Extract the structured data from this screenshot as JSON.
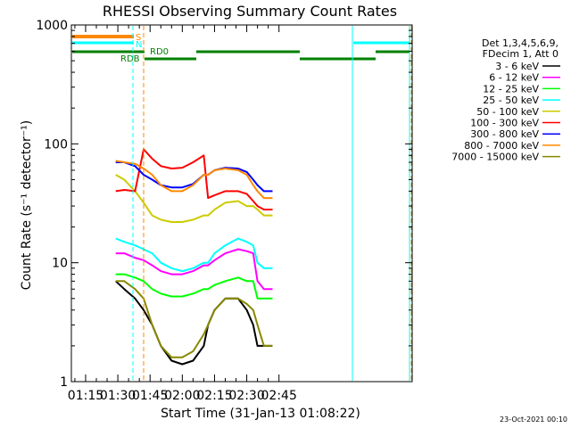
{
  "title": "RHESSI Observing Summary Count Rates",
  "footer_date": "23-Oct-2021 00:10",
  "legend": {
    "header_lines": [
      "Det 1,3,4,5,6,9,",
      "FDecim 1, Att 0"
    ],
    "entries": [
      {
        "label": "3 - 6 keV",
        "color": "#000000"
      },
      {
        "label": "6 - 12 keV",
        "color": "#ff00ff"
      },
      {
        "label": "12 - 25 keV",
        "color": "#00ff00"
      },
      {
        "label": "25 - 50 keV",
        "color": "#00ffff"
      },
      {
        "label": "50 - 100 keV",
        "color": "#cccc00"
      },
      {
        "label": "100 - 300 keV",
        "color": "#ff0000"
      },
      {
        "label": "300 - 800 keV",
        "color": "#0000ff"
      },
      {
        "label": "800 - 7000 keV",
        "color": "#ff8800"
      },
      {
        "label": "7000 - 15000 keV",
        "color": "#888800"
      }
    ]
  },
  "status_labels": {
    "s": "S",
    "n": "N",
    "rdb": "RDB",
    "rd0": "RD0"
  },
  "status_colors": {
    "saa": "#ff8800",
    "night": "#00ffff",
    "decim": "#008000"
  },
  "chart_data": {
    "type": "line",
    "title": "RHESSI Observing Summary Count Rates",
    "xlabel": "Start Time (31-Jan-13 01:08:22)",
    "ylabel": "Count Rate (s⁻¹ detector⁻¹)",
    "yscale": "log",
    "ylim": [
      1,
      1000
    ],
    "xlim_minutes_after_0100": [
      8.37,
      167
    ],
    "x_ticks": [
      {
        "label": "01:15",
        "minute": 15
      },
      {
        "label": "01:30",
        "minute": 30
      },
      {
        "label": "01:45",
        "minute": 45
      },
      {
        "label": "02:00",
        "minute": 60
      },
      {
        "label": "02:15",
        "minute": 75
      },
      {
        "label": "02:30",
        "minute": 90
      },
      {
        "label": "02:45",
        "minute": 105
      }
    ],
    "y_ticks": [
      {
        "label": "1",
        "value": 1
      },
      {
        "label": "10",
        "value": 10
      },
      {
        "label": "100",
        "value": 100
      },
      {
        "label": "1000",
        "value": 1000
      }
    ],
    "series": [
      {
        "name": "3 - 6 keV",
        "color": "#000000",
        "x": [
          29,
          33,
          38,
          42,
          46,
          50,
          55,
          60,
          65,
          70,
          72,
          75,
          80,
          86,
          90,
          93,
          95,
          98,
          102
        ],
        "y": [
          7,
          6,
          5,
          4,
          3,
          2,
          1.5,
          1.4,
          1.5,
          2,
          3,
          4,
          5,
          5,
          4,
          3,
          2,
          2,
          2
        ]
      },
      {
        "name": "6 - 12 keV",
        "color": "#ff00ff",
        "x": [
          29,
          33,
          38,
          42,
          46,
          50,
          55,
          60,
          65,
          70,
          72,
          75,
          80,
          86,
          90,
          93,
          95,
          98,
          102
        ],
        "y": [
          12,
          12,
          11,
          10.5,
          9.5,
          8.5,
          8,
          8,
          8.5,
          9.5,
          9.5,
          10.5,
          12,
          13,
          12.5,
          12,
          7,
          6,
          6
        ]
      },
      {
        "name": "12 - 25 keV",
        "color": "#00ff00",
        "x": [
          29,
          33,
          38,
          42,
          46,
          50,
          55,
          60,
          65,
          70,
          72,
          75,
          80,
          86,
          90,
          93,
          95,
          98,
          102
        ],
        "y": [
          8,
          8,
          7.5,
          7,
          6,
          5.5,
          5.2,
          5.2,
          5.5,
          6,
          6,
          6.5,
          7,
          7.5,
          7,
          7,
          5,
          5,
          5
        ]
      },
      {
        "name": "25 - 50 keV",
        "color": "#00ffff",
        "x": [
          29,
          33,
          38,
          42,
          46,
          50,
          55,
          60,
          65,
          70,
          72,
          75,
          80,
          86,
          90,
          93,
          95,
          98,
          102
        ],
        "y": [
          16,
          15,
          14,
          13,
          12,
          10,
          9,
          8.5,
          9,
          10,
          10,
          12,
          14,
          16,
          15,
          14,
          10,
          9,
          9
        ]
      },
      {
        "name": "50 - 100 keV",
        "color": "#cccc00",
        "x": [
          29,
          33,
          38,
          42,
          46,
          50,
          55,
          60,
          65,
          70,
          72,
          75,
          80,
          86,
          90,
          93,
          95,
          98,
          102
        ],
        "y": [
          55,
          50,
          40,
          32,
          25,
          23,
          22,
          22,
          23,
          25,
          25,
          28,
          32,
          33,
          30,
          30,
          28,
          25,
          25
        ]
      },
      {
        "name": "100 - 300 keV",
        "color": "#ff0000",
        "x": [
          29,
          33,
          38,
          42,
          46,
          50,
          55,
          60,
          65,
          70,
          72,
          75,
          80,
          86,
          90,
          93,
          95,
          98,
          102
        ],
        "y": [
          40,
          41,
          40,
          90,
          75,
          65,
          62,
          63,
          70,
          80,
          35,
          37,
          40,
          40,
          38,
          33,
          30,
          28,
          28
        ]
      },
      {
        "name": "300 - 800 keV",
        "color": "#0000ff",
        "x": [
          29,
          33,
          38,
          42,
          46,
          50,
          55,
          60,
          65,
          70,
          72,
          75,
          80,
          86,
          90,
          93,
          95,
          98,
          102
        ],
        "y": [
          70,
          70,
          65,
          55,
          50,
          45,
          43,
          43,
          46,
          55,
          55,
          60,
          63,
          62,
          58,
          50,
          45,
          40,
          40
        ]
      },
      {
        "name": "800 - 7000 keV",
        "color": "#ff8800",
        "x": [
          29,
          33,
          38,
          42,
          46,
          50,
          55,
          60,
          65,
          70,
          72,
          75,
          80,
          86,
          90,
          93,
          95,
          98,
          102
        ],
        "y": [
          72,
          70,
          68,
          62,
          55,
          45,
          40,
          40,
          45,
          55,
          55,
          60,
          62,
          60,
          55,
          45,
          40,
          35,
          35
        ]
      },
      {
        "name": "7000 - 15000 keV",
        "color": "#888800",
        "x": [
          29,
          33,
          38,
          42,
          46,
          50,
          55,
          60,
          65,
          70,
          72,
          75,
          80,
          86,
          90,
          93,
          95,
          98,
          102
        ],
        "y": [
          7,
          7,
          6,
          5,
          3,
          2,
          1.6,
          1.6,
          1.8,
          2.5,
          3,
          4,
          5,
          5,
          4.5,
          4,
          3,
          2,
          2
        ]
      }
    ],
    "grid": false,
    "legend_position": "right"
  }
}
